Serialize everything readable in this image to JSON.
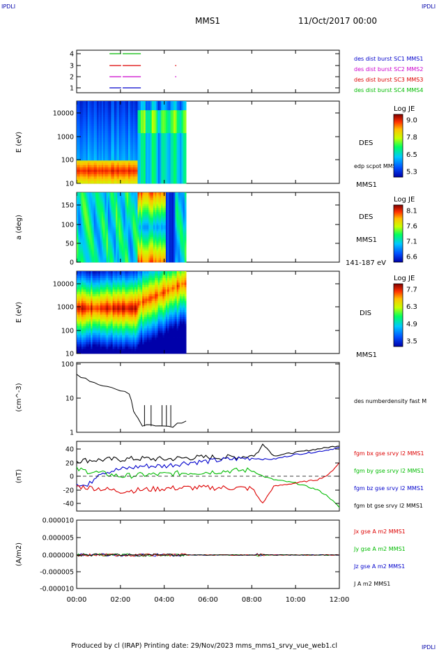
{
  "corner_labels": {
    "top_left": "IPDLI",
    "top_right": "IPDLI",
    "bottom_right": "IPDLI"
  },
  "header": {
    "title": "MMS1",
    "date": "11/Oct/2017 00:00"
  },
  "footer": {
    "text": "Produced by cl (IRAP)   Printing date: 29/Nov/2023   mms_mms1_srvy_vue_web1.cl"
  },
  "colors": {
    "blue": "#0000cc",
    "magenta": "#cc00cc",
    "red": "#dd0000",
    "green": "#00bb00",
    "black": "#000000"
  },
  "x_axis": {
    "ticks": [
      "00:00",
      "02:00",
      "04:00",
      "06:00",
      "08:00",
      "10:00",
      "12:00"
    ],
    "range_hours": [
      0,
      12
    ]
  },
  "chart_data": [
    {
      "type": "line",
      "name": "burst-availability",
      "yticks": [
        "4",
        "3",
        "2",
        "1"
      ],
      "legend": [
        {
          "label": "des dist burst SC1 MMS1",
          "color": "#0000cc"
        },
        {
          "label": "des dist burst SC2 MMS2",
          "color": "#cc00cc"
        },
        {
          "label": "des dist burst SC3 MMS3",
          "color": "#dd0000"
        },
        {
          "label": "des dist burst SC4 MMS4",
          "color": "#00bb00"
        }
      ],
      "segments": [
        {
          "level": 4,
          "color": "#00bb00",
          "x": [
            [
              1.5,
              2.0
            ],
            [
              2.1,
              2.9
            ]
          ]
        },
        {
          "level": 3,
          "color": "#dd0000",
          "x": [
            [
              1.5,
              2.0
            ],
            [
              2.1,
              2.9
            ],
            [
              4.5,
              4.52
            ]
          ]
        },
        {
          "level": 2,
          "color": "#cc00cc",
          "x": [
            [
              1.5,
              2.0
            ],
            [
              2.1,
              2.9
            ],
            [
              4.5,
              4.52
            ]
          ]
        },
        {
          "level": 1,
          "color": "#0000cc",
          "x": [
            [
              1.5,
              2.0
            ],
            [
              2.1,
              2.9
            ]
          ]
        }
      ]
    },
    {
      "type": "heatmap",
      "name": "des-energy-spectrogram",
      "ylabel": "E (eV)",
      "yticks": [
        "10000",
        "1000",
        "100",
        "10"
      ],
      "right_labels": [
        "DES",
        "edp scpot MMS1",
        "MMS1"
      ],
      "colorbar": {
        "title": "Log JE",
        "ticks": [
          "9.0",
          "7.8",
          "6.5",
          "5.3"
        ]
      },
      "x_extent_hours": [
        0,
        5
      ]
    },
    {
      "type": "heatmap",
      "name": "des-pitch-angle",
      "ylabel": "a (deg)",
      "yticks": [
        "150",
        "100",
        "50",
        "0"
      ],
      "right_labels": [
        "DES",
        "MMS1",
        "141-187 eV"
      ],
      "colorbar": {
        "title": "Log JE",
        "ticks": [
          "8.1",
          "7.6",
          "7.1",
          "6.6"
        ]
      },
      "x_extent_hours": [
        0,
        5
      ]
    },
    {
      "type": "heatmap",
      "name": "dis-energy-spectrogram",
      "ylabel": "E (eV)",
      "yticks": [
        "10000",
        "1000",
        "100",
        "10"
      ],
      "right_labels": [
        "DIS",
        "MMS1"
      ],
      "colorbar": {
        "title": "Log JE",
        "ticks": [
          "7.7",
          "6.3",
          "4.9",
          "3.5"
        ]
      },
      "x_extent_hours": [
        0,
        5
      ]
    },
    {
      "type": "line",
      "name": "number-density",
      "ylabel": "(cm^-3)",
      "yticks": [
        "100",
        "10",
        "1"
      ],
      "legend": [
        {
          "label": "des numberdensity fast M",
          "color": "#000000"
        }
      ],
      "series": [
        {
          "x": [
            0.0,
            0.2,
            0.4,
            0.6,
            0.8,
            1.0,
            1.2,
            1.4,
            1.6,
            1.8,
            2.0,
            2.2,
            2.4,
            2.5,
            2.6,
            2.7,
            2.8,
            3.0,
            3.2,
            3.4,
            3.6,
            3.8,
            4.0,
            4.2,
            4.4,
            4.6,
            4.8,
            5.0
          ],
          "y": [
            45,
            38,
            35,
            30,
            27,
            23,
            22,
            20,
            19,
            17,
            16,
            15,
            12,
            8,
            4,
            3,
            2.5,
            1.5,
            1.6,
            1.5,
            1.4,
            1.6,
            1.5,
            1.5,
            1.5,
            1.7,
            1.8,
            2.0
          ]
        }
      ]
    },
    {
      "type": "line",
      "name": "magnetic-field",
      "ylabel": "(nT)",
      "yticks": [
        "40",
        "20",
        "0",
        "-20",
        "-40"
      ],
      "legend": [
        {
          "label": "fgm bx gse srvy l2 MMS1",
          "color": "#dd0000"
        },
        {
          "label": "fgm by gse srvy l2 MMS1",
          "color": "#00bb00"
        },
        {
          "label": "fgm bz gse srvy l2 MMS1",
          "color": "#0000cc"
        },
        {
          "label": "fgm bt gse srvy l2 MMS1",
          "color": "#000000"
        }
      ],
      "series": [
        {
          "color": "#000000",
          "x": [
            0,
            1,
            2,
            3,
            4,
            5,
            6,
            7,
            8,
            8.3,
            8.5,
            9,
            10,
            11,
            12
          ],
          "y": [
            23,
            24,
            25,
            26,
            25,
            27,
            28,
            28,
            30,
            35,
            48,
            30,
            35,
            40,
            45
          ]
        },
        {
          "color": "#0000cc",
          "x": [
            0,
            0.5,
            1,
            2,
            3,
            4,
            5,
            6,
            7,
            8,
            8.5,
            9,
            10,
            11,
            12
          ],
          "y": [
            -10,
            -15,
            5,
            10,
            15,
            15,
            20,
            22,
            25,
            27,
            25,
            25,
            32,
            36,
            42
          ]
        },
        {
          "color": "#00bb00",
          "x": [
            0,
            1,
            2,
            3,
            4,
            5,
            6,
            7,
            8,
            8.5,
            9,
            10,
            11,
            11.5,
            12
          ],
          "y": [
            10,
            5,
            0,
            2,
            3,
            5,
            6,
            8,
            9,
            0,
            -5,
            -10,
            -20,
            -30,
            -46
          ]
        },
        {
          "color": "#dd0000",
          "x": [
            0,
            1,
            2,
            3,
            4,
            5,
            6,
            7,
            8,
            8.5,
            9,
            10,
            11,
            11.5,
            12
          ],
          "y": [
            -15,
            -18,
            -22,
            -20,
            -18,
            -17,
            -17,
            -17,
            -18,
            -40,
            -15,
            -10,
            -5,
            2,
            20
          ]
        }
      ]
    },
    {
      "type": "line",
      "name": "current-density",
      "ylabel": "(A/m2)",
      "yticks": [
        "0.000010",
        "0.000005",
        "0.000000",
        "-0.000005",
        "-0.000010"
      ],
      "legend": [
        {
          "label": "Jx gse A m2 MMS1",
          "color": "#dd0000"
        },
        {
          "label": "Jy gse A m2 MMS1",
          "color": "#00bb00"
        },
        {
          "label": "Jz gse A m2 MMS1",
          "color": "#0000cc"
        },
        {
          "label": "J A m2 MMS1",
          "color": "#000000"
        }
      ]
    }
  ]
}
